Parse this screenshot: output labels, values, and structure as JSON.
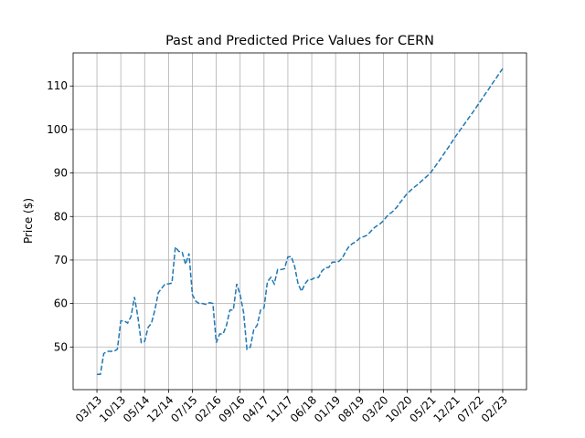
{
  "chart_data": {
    "type": "line",
    "title": "Past and Predicted Price Values for CERN",
    "y_label": "Price ($)",
    "categories": [
      "03/13",
      null,
      null,
      null,
      null,
      null,
      null,
      "10/13",
      null,
      null,
      null,
      null,
      null,
      null,
      "05/14",
      null,
      null,
      null,
      null,
      null,
      null,
      "12/14",
      null,
      null,
      null,
      null,
      null,
      null,
      "07/15",
      null,
      null,
      null,
      null,
      null,
      null,
      "02/16",
      null,
      null,
      null,
      null,
      null,
      null,
      "09/16",
      null,
      null,
      null,
      null,
      null,
      null,
      "04/17",
      null,
      null,
      null,
      null,
      null,
      null,
      "11/17",
      null,
      null,
      null,
      null,
      null,
      null,
      "06/18",
      null,
      null,
      null,
      null,
      null,
      null,
      "01/19",
      null,
      null,
      null,
      null,
      null,
      null,
      "08/19",
      null,
      null,
      null,
      null,
      null,
      null,
      "03/20",
      null,
      null,
      null,
      null,
      null,
      null,
      "10/20",
      null,
      null,
      null,
      null,
      null,
      null,
      "05/21",
      null,
      null,
      null,
      null,
      null,
      null,
      "12/21",
      null,
      null,
      null,
      null,
      null,
      null,
      "07/22",
      null,
      null,
      null,
      null,
      null,
      null,
      "02/23"
    ],
    "values": [
      43.7,
      43.7,
      48.5,
      49,
      49,
      49,
      49.5,
      56,
      56,
      55.5,
      57,
      61.5,
      57,
      51,
      51.3,
      54.5,
      55.5,
      58.5,
      62.5,
      63.5,
      64.5,
      64.5,
      64.7,
      73,
      72,
      71.8,
      69,
      71.5,
      62,
      60.5,
      60,
      60,
      59.8,
      60.2,
      60,
      51,
      53,
      53,
      55,
      58.5,
      58.5,
      64.5,
      62,
      58,
      49.5,
      50,
      54,
      55,
      58.5,
      59,
      65,
      66,
      64.5,
      67.8,
      67.8,
      68,
      70.7,
      70.8,
      68.5,
      64.5,
      62.8,
      64.5,
      65.5,
      65.5,
      66,
      66,
      67.5,
      68.2,
      68.3,
      69.5,
      69.5,
      69.7,
      70.5,
      72,
      73.2,
      73.8,
      74.2,
      75,
      75.3,
      75.6,
      76.3,
      77.2,
      77.8,
      78.3,
      79,
      80,
      80.7,
      81.3,
      82.2,
      83.3,
      84.3,
      85.3,
      86.0,
      86.7,
      87.3,
      88.0,
      88.7,
      89.4,
      90.2,
      91.3,
      92.4,
      93.5,
      94.7,
      95.8,
      97.0,
      98.2,
      99.3,
      100.4,
      101.5,
      102.6,
      103.7,
      104.8,
      106.0,
      107.1,
      108.3,
      109.4,
      110.6,
      111.7,
      112.9,
      114.0
    ],
    "color": "#1f77b4",
    "line_style": "dashed",
    "ylim": [
      40.2,
      117.6
    ],
    "yticks": [
      50,
      60,
      70,
      80,
      90,
      100,
      110
    ],
    "grid": true
  }
}
